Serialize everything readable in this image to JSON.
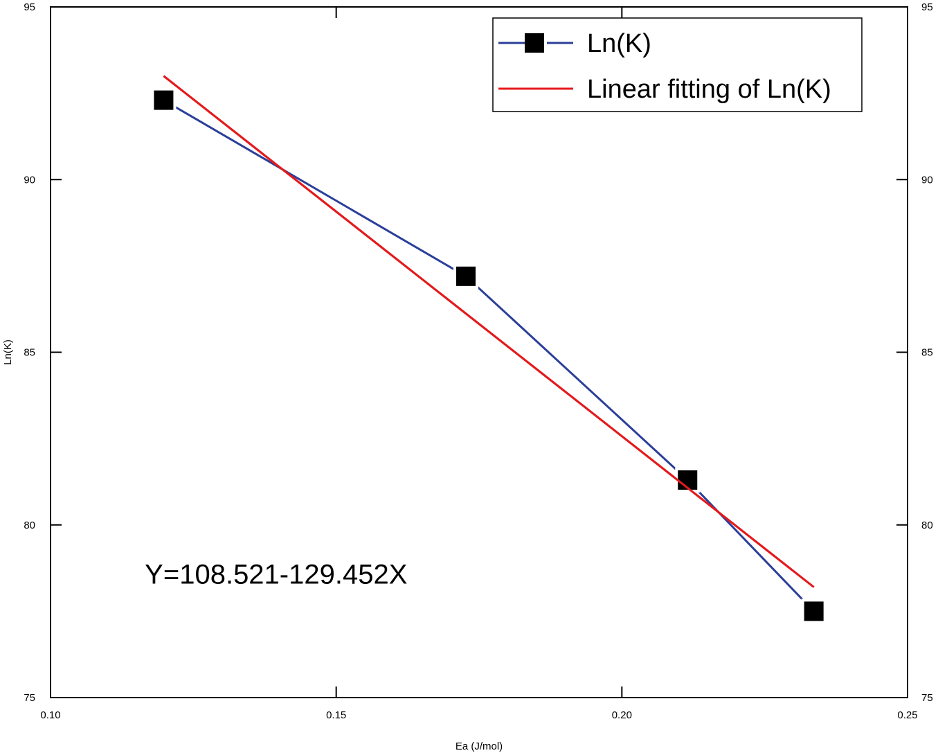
{
  "chart_data": {
    "type": "line",
    "title": "",
    "xlabel": "Ea (J/mol)",
    "ylabel": "Ln(K)",
    "xlim": [
      0.1,
      0.25
    ],
    "ylim": [
      75,
      95
    ],
    "x_ticks": [
      0.1,
      0.15,
      0.2,
      0.25
    ],
    "x_tick_labels": [
      "0.10",
      "0.15",
      "0.20",
      "0.25"
    ],
    "y_ticks": [
      75,
      80,
      85,
      90,
      95
    ],
    "y_tick_labels": [
      "75",
      "80",
      "85",
      "90",
      "95"
    ],
    "grid": false,
    "legend_position": "top-right",
    "series": [
      {
        "name": "Ln(K)",
        "kind": "line-markers",
        "color": "#2b3f99",
        "marker": "square",
        "marker_color": "#000000",
        "x": [
          0.1198,
          0.1727,
          0.2115,
          0.2336
        ],
        "y": [
          92.3,
          87.2,
          81.3,
          77.5
        ]
      },
      {
        "name": "Linear fitting of Ln(K)",
        "kind": "line",
        "color": "#e41a1c",
        "x": [
          0.1198,
          0.2336
        ],
        "y": [
          93.0,
          78.2
        ]
      }
    ],
    "annotations": [
      {
        "text": "Y=108.521-129.452X",
        "x": 0.1165,
        "y": 78.3
      }
    ]
  }
}
